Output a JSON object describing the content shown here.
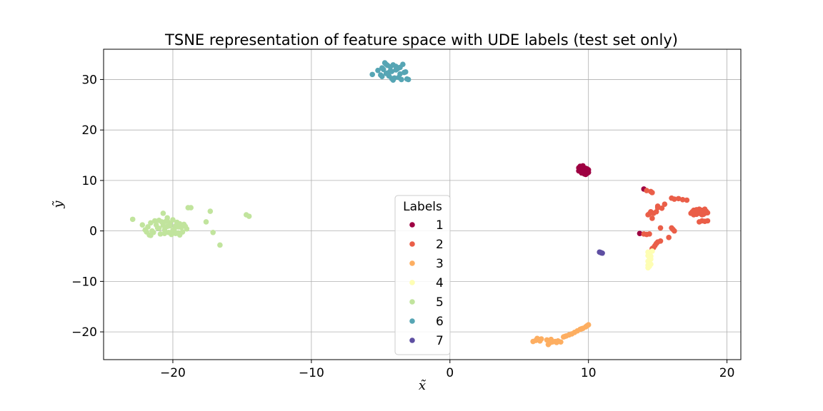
{
  "chart_data": {
    "type": "scatter",
    "title": "TSNE representation of feature space with UDE labels (test set only)",
    "xlabel": "x̃",
    "ylabel": "ỹ",
    "xlim": [
      -25,
      21
    ],
    "ylim": [
      -25.5,
      36
    ],
    "xticks": [
      -20,
      -10,
      0,
      10,
      20
    ],
    "yticks": [
      -20,
      -10,
      0,
      10,
      20,
      30
    ],
    "xtick_labels": [
      "−20",
      "−10",
      "0",
      "10",
      "20"
    ],
    "ytick_labels": [
      "−20",
      "−10",
      "0",
      "10",
      "20",
      "30"
    ],
    "grid": true,
    "legend": {
      "title": "Labels",
      "placement": "lower-center"
    },
    "series": [
      {
        "name": "1",
        "color": "#9e0142",
        "x": [
          9.3,
          9.4,
          9.5,
          9.6,
          9.7,
          9.8,
          9.9,
          10.0,
          9.4,
          9.5,
          9.6,
          9.7,
          9.8,
          9.9,
          9.5,
          9.6,
          9.7,
          9.8,
          9.3,
          9.4,
          9.6,
          9.8,
          10.0,
          9.5,
          9.7,
          9.9,
          14.0,
          13.7
        ],
        "y": [
          12.5,
          12.8,
          12.4,
          12.6,
          12.2,
          12.0,
          11.9,
          12.1,
          12.0,
          11.8,
          11.6,
          11.5,
          11.7,
          11.4,
          12.3,
          12.9,
          11.3,
          11.2,
          11.9,
          12.2,
          12.0,
          12.4,
          11.6,
          11.5,
          11.9,
          12.3,
          8.3,
          -0.5
        ]
      },
      {
        "name": "2",
        "color": "#ea5e48",
        "x": [
          14.2,
          14.5,
          14.6,
          14.4,
          14.6,
          14.3,
          14.5,
          14.9,
          15.0,
          15.3,
          15.0,
          14.7,
          16.0,
          16.2,
          16.5,
          16.8,
          17.1,
          15.5,
          15.2,
          14.4,
          14.2,
          14.0,
          16.0,
          16.1,
          16.2,
          15.8,
          15.2,
          15.0,
          14.9,
          14.8,
          14.7,
          14.6,
          17.4,
          17.5,
          17.6,
          17.7,
          17.8,
          17.9,
          18.0,
          18.1,
          18.2,
          18.3,
          18.4,
          18.5,
          18.6,
          17.6,
          17.8,
          18.0,
          18.2,
          18.4,
          17.7,
          17.9,
          18.1,
          18.3,
          18.5,
          17.8,
          18.0,
          18.2,
          18.4,
          18.0,
          18.2,
          18.4,
          18.6
        ],
        "y": [
          8.0,
          7.8,
          7.6,
          3.4,
          2.5,
          3.2,
          3.8,
          3.8,
          4.6,
          4.5,
          4.9,
          3.5,
          6.5,
          6.3,
          6.4,
          6.2,
          6.1,
          5.3,
          0.6,
          -0.6,
          -0.7,
          -0.6,
          0.6,
          0.3,
          0.0,
          -1.3,
          -2.0,
          -2.2,
          -2.5,
          -2.9,
          -3.3,
          -3.5,
          3.5,
          3.8,
          4.1,
          3.6,
          3.3,
          4.0,
          3.7,
          3.4,
          4.1,
          3.8,
          3.5,
          3.9,
          3.6,
          3.2,
          4.2,
          4.3,
          3.2,
          4.3,
          3.9,
          3.5,
          4.0,
          3.3,
          3.7,
          3.9,
          3.6,
          3.7,
          3.8,
          1.8,
          2.0,
          1.9,
          2.0
        ]
      },
      {
        "name": "3",
        "color": "#fdae61",
        "x": [
          6.0,
          6.2,
          6.4,
          6.6,
          6.3,
          6.5,
          7.0,
          7.2,
          7.4,
          7.6,
          7.8,
          8.0,
          7.1,
          7.3,
          8.2,
          8.4,
          8.6,
          8.8,
          9.0,
          9.2,
          9.4,
          9.6,
          9.8,
          10.0,
          7.7,
          8.3,
          9.5,
          9.9
        ],
        "y": [
          -21.9,
          -21.7,
          -21.5,
          -21.4,
          -21.3,
          -21.8,
          -21.6,
          -22.2,
          -22.0,
          -21.9,
          -21.8,
          -22.0,
          -22.5,
          -21.5,
          -21.0,
          -20.8,
          -20.6,
          -20.4,
          -20.1,
          -19.8,
          -19.5,
          -19.3,
          -19.0,
          -18.6,
          -22.1,
          -20.9,
          -19.4,
          -18.8
        ]
      },
      {
        "name": "4",
        "color": "#fefeb4",
        "x": [
          14.3,
          14.4,
          14.3,
          14.4,
          14.5,
          14.3,
          14.4,
          14.5,
          14.4,
          14.3,
          14.6,
          14.5,
          14.4,
          14.3
        ],
        "y": [
          -4.2,
          -4.5,
          -4.9,
          -5.3,
          -5.6,
          -6.0,
          -6.3,
          -6.6,
          -7.0,
          -7.3,
          -4.0,
          -5.0,
          -5.8,
          -6.8
        ]
      },
      {
        "name": "5",
        "color": "#c1e49d",
        "x": [
          -22.9,
          -22.0,
          -21.8,
          -21.6,
          -21.4,
          -21.2,
          -21.0,
          -20.8,
          -20.6,
          -20.4,
          -20.2,
          -20.0,
          -19.8,
          -19.6,
          -19.4,
          -19.2,
          -19.0,
          -21.7,
          -21.3,
          -20.9,
          -20.5,
          -20.1,
          -19.7,
          -19.3,
          -21.5,
          -21.1,
          -20.7,
          -20.3,
          -19.9,
          -19.5,
          -19.1,
          -22.2,
          -21.9,
          -21.0,
          -20.0,
          -19.8,
          -20.6,
          -20.4,
          -19.6,
          -20.7,
          -20.2,
          -18.9,
          -18.7,
          -17.6,
          -17.3,
          -17.1,
          -16.6,
          -14.7,
          -14.5,
          -20.4,
          -21.6,
          -19.5
        ],
        "y": [
          2.3,
          0.2,
          0.8,
          1.6,
          -0.3,
          1.2,
          0.5,
          1.8,
          -0.5,
          0.9,
          1.5,
          0.1,
          1.0,
          -0.4,
          0.7,
          1.3,
          0.4,
          -0.8,
          2.0,
          -0.6,
          1.9,
          -0.7,
          1.7,
          -0.2,
          0.0,
          0.6,
          1.1,
          -0.3,
          0.3,
          1.4,
          0.9,
          1.2,
          -0.2,
          2.1,
          2.2,
          -0.5,
          0.2,
          2.0,
          0.8,
          3.5,
          1.0,
          4.6,
          4.6,
          1.8,
          3.9,
          -0.3,
          -2.8,
          3.2,
          2.9,
          2.6,
          -0.9,
          -0.8
        ]
      },
      {
        "name": "6",
        "color": "#56a5b4",
        "x": [
          -5.6,
          -5.2,
          -5.0,
          -4.9,
          -4.7,
          -4.6,
          -4.5,
          -4.4,
          -4.3,
          -4.2,
          -4.1,
          -4.0,
          -3.9,
          -3.8,
          -3.7,
          -3.6,
          -3.5,
          -3.4,
          -3.2,
          -3.1,
          -3.0,
          -4.8,
          -4.5,
          -4.2,
          -3.9,
          -4.6,
          -4.3,
          -3.7,
          -3.3,
          -4.9,
          -4.1,
          -3.6
        ],
        "y": [
          31.0,
          31.8,
          30.9,
          32.3,
          33.3,
          31.2,
          32.8,
          30.7,
          32.5,
          31.6,
          32.9,
          30.3,
          31.9,
          32.1,
          32.3,
          31.1,
          30.0,
          33.0,
          31.5,
          30.1,
          30.0,
          32.0,
          31.3,
          30.2,
          32.6,
          33.0,
          31.7,
          30.4,
          31.4,
          30.6,
          29.9,
          32.4
        ]
      },
      {
        "name": "7",
        "color": "#5e4fa2",
        "x": [
          10.9,
          10.8,
          11.0,
          10.9
        ],
        "y": [
          -4.3,
          -4.2,
          -4.4,
          -4.3
        ]
      }
    ]
  }
}
